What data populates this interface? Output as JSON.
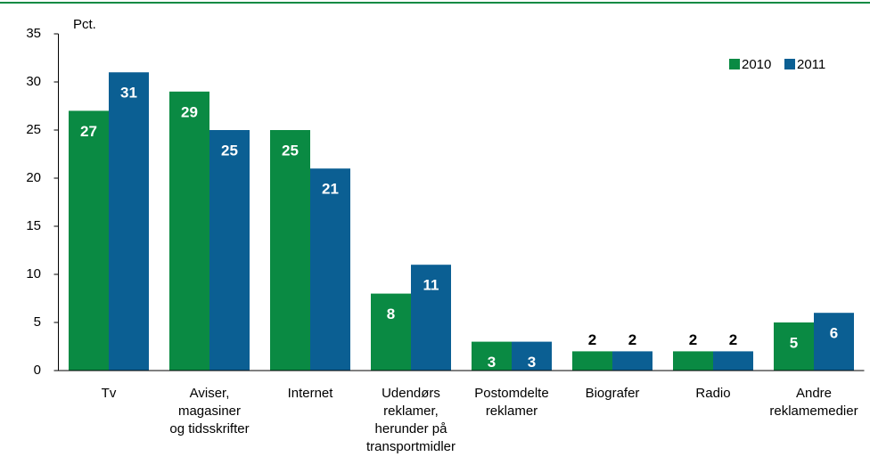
{
  "chart_data": {
    "type": "bar",
    "y_label": "Pct.",
    "categories": [
      [
        "Tv"
      ],
      [
        "Aviser,",
        "magasiner",
        "og tidsskrifter"
      ],
      [
        "Internet"
      ],
      [
        "Udendørs",
        "reklamer,",
        "herunder på",
        "transportmidler"
      ],
      [
        "Postomdelte",
        "reklamer"
      ],
      [
        "Biografer"
      ],
      [
        "Radio"
      ],
      [
        "Andre",
        "reklamemedier"
      ]
    ],
    "series": [
      {
        "name": "2010",
        "color": "#0a8a43",
        "values": [
          27,
          29,
          25,
          8,
          3,
          2,
          2,
          5
        ]
      },
      {
        "name": "2011",
        "color": "#0b5f93",
        "values": [
          31,
          25,
          21,
          11,
          3,
          2,
          2,
          6
        ]
      }
    ],
    "ylim": [
      0,
      35
    ],
    "yticks": [
      0,
      5,
      10,
      15,
      20,
      25,
      30,
      35
    ],
    "legend": "top-right"
  }
}
